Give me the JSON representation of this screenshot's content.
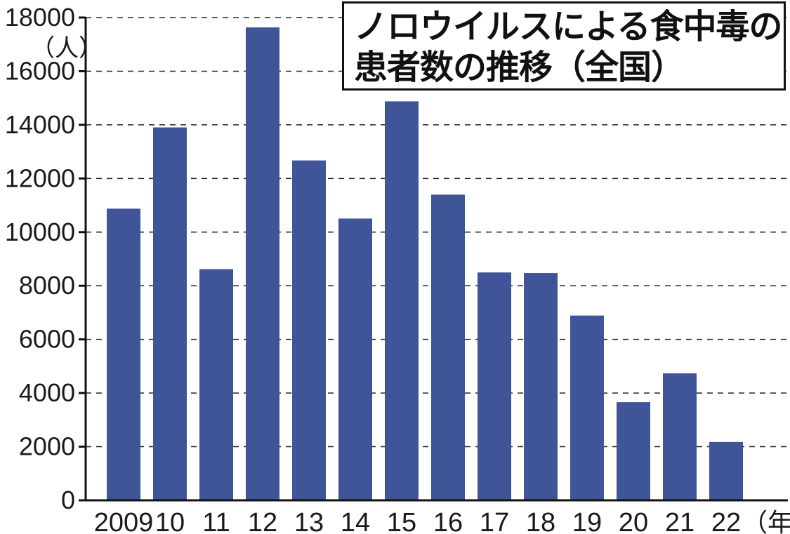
{
  "chart_data": {
    "type": "bar",
    "title_lines": [
      "ノロウイルスによる食中毒の",
      "患者数の推移（全国）"
    ],
    "ylabel": "（人）",
    "xunit": "（年）",
    "categories": [
      "2009",
      "10",
      "11",
      "12",
      "13",
      "14",
      "15",
      "16",
      "17",
      "18",
      "19",
      "20",
      "21",
      "22"
    ],
    "values": [
      10874,
      13904,
      8619,
      17632,
      12672,
      10506,
      14876,
      11397,
      8496,
      8475,
      6889,
      3660,
      4733,
      2175
    ],
    "ylim": [
      0,
      18000
    ],
    "yticks": [
      0,
      2000,
      4000,
      6000,
      8000,
      10000,
      12000,
      14000,
      16000,
      18000
    ],
    "grid": "dashed horizontal",
    "legend": "none",
    "bar_color": "#3f5597"
  }
}
